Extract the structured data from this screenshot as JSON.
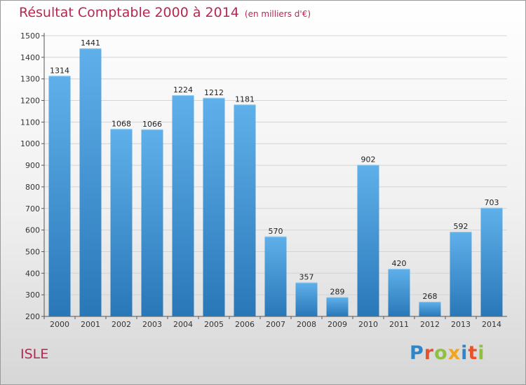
{
  "header": {
    "title": "Résultat Comptable 2000 à 2014",
    "subtitle": "(en milliers d'€)"
  },
  "footer": {
    "commune": "ISLE",
    "logo_text": "Proxiti",
    "logo_letters": [
      {
        "ch": "P",
        "color": "#2e86c9"
      },
      {
        "ch": "r",
        "color": "#e6522c"
      },
      {
        "ch": "o",
        "color": "#8fc13e"
      },
      {
        "ch": "x",
        "color": "#f2a51c"
      },
      {
        "ch": "i",
        "color": "#2e86c9"
      },
      {
        "ch": "t",
        "color": "#e6522c"
      },
      {
        "ch": "i",
        "color": "#8fc13e"
      }
    ]
  },
  "chart_data": {
    "type": "bar",
    "categories": [
      "2000",
      "2001",
      "2002",
      "2003",
      "2004",
      "2005",
      "2006",
      "2007",
      "2008",
      "2009",
      "2010",
      "2011",
      "2012",
      "2013",
      "2014"
    ],
    "values": [
      1314,
      1441,
      1068,
      1066,
      1224,
      1212,
      1181,
      570,
      357,
      289,
      902,
      420,
      268,
      592,
      703
    ],
    "title": "Résultat Comptable 2000 à 2014",
    "subtitle": "(en milliers d'€)",
    "xlabel": "",
    "ylabel": "",
    "ylim": [
      200,
      1500
    ],
    "yticks": [
      200,
      300,
      400,
      500,
      600,
      700,
      800,
      900,
      1000,
      1100,
      1200,
      1300,
      1400,
      1500
    ],
    "grid": true,
    "bar_color": "#4a9fdc",
    "bar_color_dark": "#2a77b8"
  }
}
